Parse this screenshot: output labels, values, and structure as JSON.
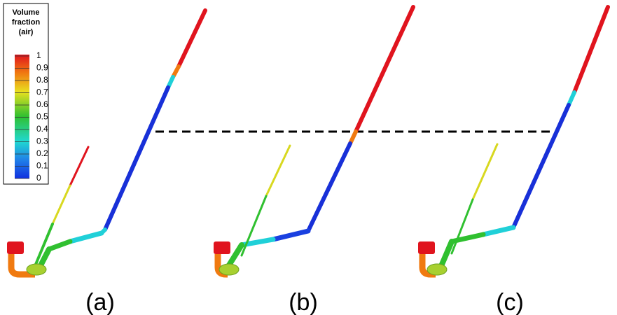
{
  "colorbar": {
    "title_lines": [
      "Volume",
      "fraction",
      "(air)"
    ],
    "ticks": [
      1,
      0.9,
      0.8,
      0.7,
      0.6,
      0.5,
      0.4,
      0.3,
      0.2,
      0.1,
      0
    ]
  },
  "panels": [
    {
      "label": "(a)"
    },
    {
      "label": "(b)"
    },
    {
      "label": "(c)"
    }
  ]
}
